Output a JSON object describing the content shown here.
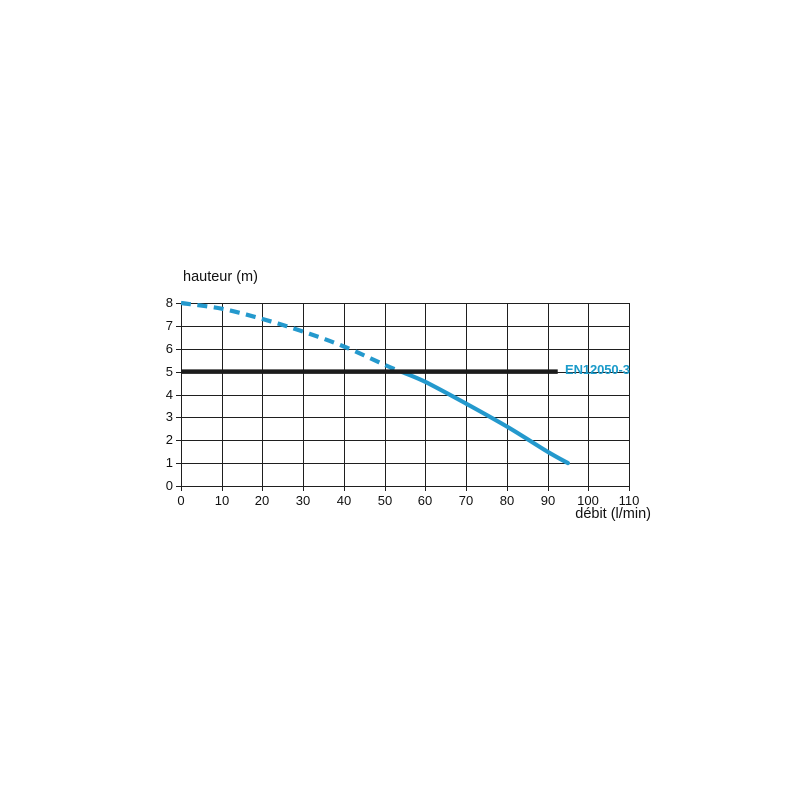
{
  "page": {
    "background": "#ffffff"
  },
  "chart_data": {
    "type": "line",
    "title": "",
    "ylabel": "hauteur (m)",
    "xlabel": "débit (l/min)",
    "xlim": [
      0,
      110
    ],
    "ylim": [
      0,
      8
    ],
    "x_ticks": [
      0,
      10,
      20,
      30,
      40,
      50,
      60,
      70,
      80,
      90,
      100,
      110
    ],
    "y_ticks": [
      0,
      1,
      2,
      3,
      4,
      5,
      6,
      7,
      8
    ],
    "grid": true,
    "grid_color": "#1f1f1f",
    "legend_position": "none",
    "series": [
      {
        "name": "pump-curve-dashed-segment",
        "style": "dashed",
        "color": "#2499cd",
        "points": [
          [
            0,
            8
          ],
          [
            10,
            7.75
          ],
          [
            20,
            7.3
          ],
          [
            30,
            6.75
          ],
          [
            40,
            6.1
          ],
          [
            50,
            5.3
          ],
          [
            54,
            5.0
          ]
        ]
      },
      {
        "name": "pump-curve-solid-segment",
        "style": "solid",
        "color": "#2499cd",
        "points": [
          [
            54,
            5.0
          ],
          [
            60,
            4.55
          ],
          [
            70,
            3.6
          ],
          [
            80,
            2.6
          ],
          [
            90,
            1.5
          ],
          [
            95,
            1.0
          ]
        ]
      }
    ],
    "annotations": [
      {
        "type": "hline",
        "label": "EN12050-3",
        "y": 5,
        "x_start": 0,
        "x_end": 92.5,
        "line_color": "#1c1c1c",
        "label_color": "#1b9bca"
      }
    ]
  }
}
